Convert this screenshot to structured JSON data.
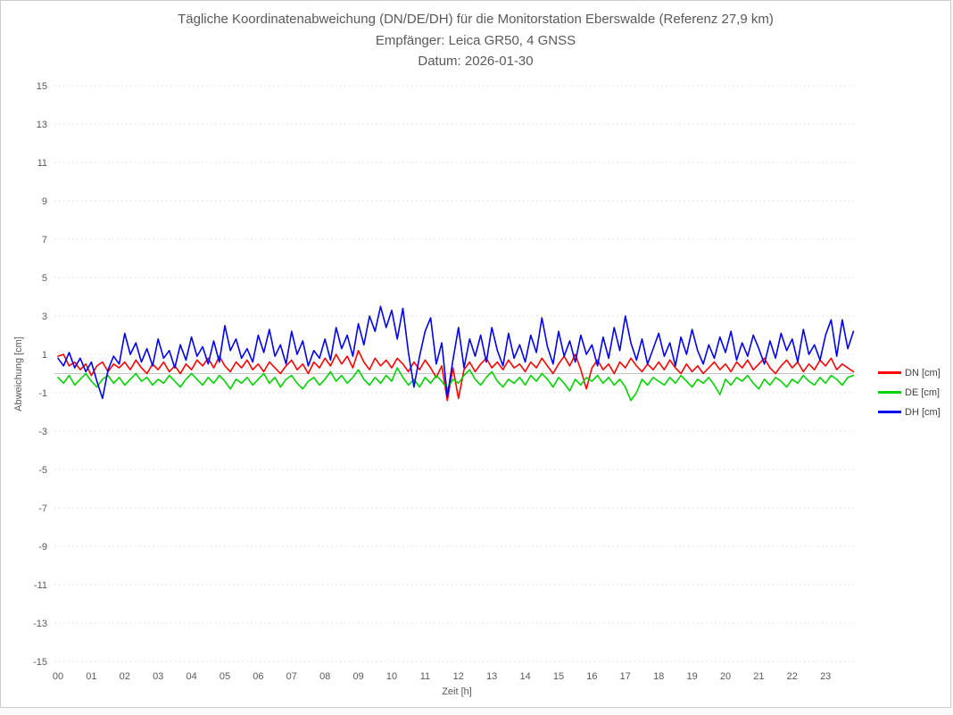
{
  "chart_data": {
    "type": "line",
    "title": "Tägliche Koordinatenabweichung (DN/DE/DH) für die Monitorstation Eberswalde (Referenz 27,9 km)",
    "subtitle": "Empfänger: Leica GR50, 4 GNSS",
    "date_line": "Datum: 2026-01-30",
    "xlabel": "Zeit [h]",
    "ylabel": "Abweichung [cm]",
    "ylim": [
      -15,
      15
    ],
    "xlim_hours": [
      0,
      24
    ],
    "y_ticks": [
      15,
      13,
      11,
      9,
      7,
      5,
      3,
      1,
      -1,
      -3,
      -5,
      -7,
      -9,
      -11,
      -13,
      -15
    ],
    "x_ticks": [
      "00",
      "01",
      "02",
      "03",
      "04",
      "05",
      "06",
      "07",
      "08",
      "09",
      "10",
      "11",
      "12",
      "13",
      "14",
      "15",
      "16",
      "17",
      "18",
      "19",
      "20",
      "21",
      "22",
      "23"
    ],
    "grid": "dotted-horizontal, solid zero line",
    "legend_position": "right",
    "sample_interval_minutes": 10,
    "series": [
      {
        "name": "DN [cm]",
        "color": "#ff0000",
        "values": [
          0.9,
          1.0,
          0.4,
          0.6,
          0.2,
          0.5,
          -0.1,
          0.4,
          0.6,
          0.1,
          0.5,
          0.3,
          0.6,
          0.2,
          0.7,
          0.3,
          0.0,
          0.5,
          0.2,
          0.6,
          0.1,
          0.4,
          0.0,
          0.5,
          0.2,
          0.7,
          0.4,
          0.8,
          0.3,
          0.9,
          0.4,
          0.1,
          0.6,
          0.3,
          0.7,
          0.2,
          0.5,
          0.1,
          0.6,
          0.3,
          0.0,
          0.4,
          0.7,
          0.2,
          0.5,
          0.0,
          0.6,
          0.3,
          0.8,
          0.4,
          1.0,
          0.5,
          0.9,
          0.3,
          1.2,
          0.6,
          0.2,
          0.8,
          0.4,
          0.7,
          0.3,
          0.8,
          0.5,
          0.1,
          0.6,
          0.2,
          0.7,
          0.3,
          -0.2,
          0.4,
          -1.4,
          0.3,
          -1.3,
          0.2,
          0.6,
          0.1,
          0.5,
          0.8,
          0.3,
          0.6,
          0.2,
          0.7,
          0.3,
          0.5,
          0.1,
          0.6,
          0.3,
          0.8,
          0.4,
          0.0,
          0.5,
          0.9,
          0.4,
          1.0,
          0.2,
          -0.8,
          0.3,
          0.7,
          0.2,
          0.5,
          0.0,
          0.6,
          0.3,
          0.8,
          0.4,
          0.1,
          0.5,
          0.2,
          0.6,
          0.2,
          0.7,
          0.3,
          0.0,
          0.5,
          0.1,
          0.4,
          0.0,
          0.3,
          0.6,
          0.2,
          0.5,
          0.1,
          0.6,
          0.3,
          0.7,
          0.2,
          0.5,
          0.8,
          0.3,
          0.0,
          0.4,
          0.7,
          0.3,
          0.6,
          0.1,
          0.5,
          0.2,
          0.7,
          0.4,
          0.8,
          0.2,
          0.5,
          0.3,
          0.1
        ]
      },
      {
        "name": "DE [cm]",
        "color": "#00d300",
        "values": [
          -0.2,
          -0.5,
          -0.1,
          -0.6,
          -0.3,
          0.0,
          -0.4,
          -0.7,
          -0.3,
          -0.1,
          -0.5,
          -0.2,
          -0.6,
          -0.3,
          0.0,
          -0.4,
          -0.2,
          -0.6,
          -0.3,
          -0.5,
          -0.1,
          -0.4,
          -0.7,
          -0.3,
          0.0,
          -0.3,
          -0.6,
          -0.2,
          -0.5,
          -0.1,
          -0.4,
          -0.8,
          -0.3,
          -0.5,
          -0.2,
          -0.6,
          -0.3,
          0.0,
          -0.5,
          -0.2,
          -0.7,
          -0.3,
          -0.1,
          -0.5,
          -0.8,
          -0.4,
          -0.2,
          -0.6,
          -0.3,
          0.1,
          -0.4,
          -0.1,
          -0.5,
          -0.2,
          0.2,
          -0.3,
          -0.6,
          -0.2,
          -0.5,
          -0.1,
          -0.4,
          0.3,
          -0.2,
          -0.6,
          -0.3,
          -0.7,
          -0.2,
          -0.5,
          -0.1,
          -0.4,
          -0.8,
          -0.3,
          -0.5,
          -0.1,
          0.2,
          -0.3,
          -0.6,
          -0.2,
          0.1,
          -0.4,
          -0.7,
          -0.3,
          -0.5,
          -0.2,
          -0.6,
          -0.1,
          -0.4,
          0.0,
          -0.3,
          -0.7,
          -0.2,
          -0.5,
          -0.9,
          -0.3,
          -0.6,
          -0.2,
          -0.4,
          -0.1,
          -0.5,
          -0.2,
          -0.6,
          -0.3,
          -0.7,
          -1.4,
          -1.0,
          -0.3,
          -0.6,
          -0.2,
          -0.4,
          -0.6,
          -0.2,
          -0.5,
          -0.1,
          -0.4,
          -0.7,
          -0.3,
          -0.5,
          -0.2,
          -0.6,
          -1.1,
          -0.3,
          -0.6,
          -0.2,
          -0.4,
          -0.1,
          -0.5,
          -0.8,
          -0.3,
          -0.6,
          -0.2,
          -0.4,
          -0.7,
          -0.3,
          -0.5,
          -0.1,
          -0.4,
          -0.6,
          -0.2,
          -0.5,
          -0.1,
          -0.3,
          -0.6,
          -0.2,
          -0.1
        ]
      },
      {
        "name": "DH [cm]",
        "color": "#0000ee",
        "values": [
          0.8,
          0.4,
          1.1,
          0.3,
          0.8,
          0.1,
          0.6,
          -0.4,
          -1.3,
          0.2,
          0.9,
          0.5,
          2.1,
          1.0,
          1.6,
          0.6,
          1.3,
          0.4,
          1.8,
          0.8,
          1.2,
          0.3,
          1.5,
          0.7,
          1.9,
          0.9,
          1.4,
          0.5,
          1.7,
          0.6,
          2.5,
          1.2,
          1.8,
          0.8,
          1.3,
          0.6,
          2.0,
          1.1,
          2.3,
          0.9,
          1.5,
          0.5,
          2.2,
          1.0,
          1.7,
          0.4,
          1.2,
          0.8,
          1.8,
          0.7,
          2.4,
          1.3,
          2.0,
          0.9,
          2.6,
          1.5,
          3.0,
          2.2,
          3.5,
          2.4,
          3.3,
          1.8,
          3.4,
          1.1,
          -0.7,
          0.9,
          2.2,
          2.9,
          0.5,
          1.6,
          -1.2,
          0.7,
          2.4,
          0.3,
          1.8,
          0.9,
          2.0,
          0.6,
          2.4,
          1.2,
          0.4,
          2.1,
          0.8,
          1.5,
          0.6,
          2.0,
          1.1,
          2.9,
          1.4,
          0.5,
          2.2,
          0.9,
          1.7,
          0.6,
          2.0,
          1.0,
          1.5,
          0.4,
          1.9,
          0.8,
          2.4,
          1.2,
          3.0,
          1.6,
          0.7,
          1.8,
          0.5,
          1.3,
          2.1,
          0.9,
          1.6,
          0.4,
          1.9,
          1.0,
          2.3,
          1.2,
          0.5,
          1.5,
          0.8,
          1.9,
          1.1,
          2.2,
          0.7,
          1.6,
          0.9,
          2.0,
          1.3,
          0.5,
          1.7,
          0.8,
          2.1,
          1.2,
          1.8,
          0.6,
          2.3,
          1.0,
          1.5,
          0.7,
          2.0,
          2.8,
          0.9,
          2.8,
          1.3,
          2.2
        ]
      }
    ]
  }
}
